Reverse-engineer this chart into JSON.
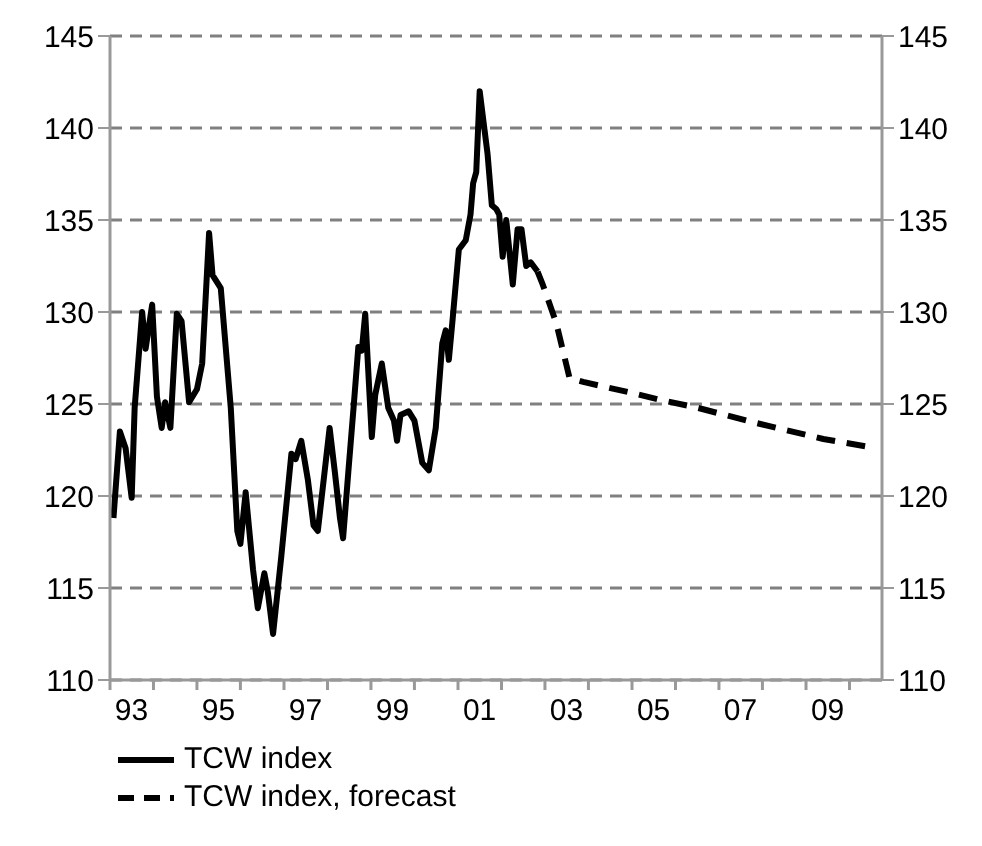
{
  "chart_data": {
    "type": "line",
    "xlim": [
      "1993-01-01",
      "2010-10-01"
    ],
    "ylim": [
      110,
      145
    ],
    "yticks": [
      110,
      115,
      120,
      125,
      130,
      135,
      140,
      145
    ],
    "y2lim": [
      110,
      145
    ],
    "y2ticks": [
      110,
      115,
      120,
      125,
      130,
      135,
      140,
      145
    ],
    "xticks": [
      {
        "value": "1993-01-01",
        "label": null
      },
      {
        "value": "1993-07-01",
        "label": "93"
      },
      {
        "value": "1994-01-01",
        "label": null
      },
      {
        "value": "1995-01-01",
        "label": null
      },
      {
        "value": "1995-07-01",
        "label": "95"
      },
      {
        "value": "1996-01-01",
        "label": null
      },
      {
        "value": "1997-01-01",
        "label": null
      },
      {
        "value": "1997-07-01",
        "label": "97"
      },
      {
        "value": "1998-01-01",
        "label": null
      },
      {
        "value": "1999-01-01",
        "label": null
      },
      {
        "value": "1999-07-01",
        "label": "99"
      },
      {
        "value": "2000-01-01",
        "label": null
      },
      {
        "value": "2001-01-01",
        "label": null
      },
      {
        "value": "2001-07-01",
        "label": "01"
      },
      {
        "value": "2002-01-01",
        "label": null
      },
      {
        "value": "2003-01-01",
        "label": null
      },
      {
        "value": "2003-07-01",
        "label": "03"
      },
      {
        "value": "2004-01-01",
        "label": null
      },
      {
        "value": "2005-01-01",
        "label": null
      },
      {
        "value": "2005-07-01",
        "label": "05"
      },
      {
        "value": "2006-01-01",
        "label": null
      },
      {
        "value": "2007-01-01",
        "label": null
      },
      {
        "value": "2007-07-01",
        "label": "07"
      },
      {
        "value": "2008-01-01",
        "label": null
      },
      {
        "value": "2009-01-01",
        "label": null
      },
      {
        "value": "2009-07-01",
        "label": "09"
      },
      {
        "value": "2010-01-01",
        "label": null
      }
    ],
    "grid": "y",
    "legend": "bottom",
    "marker": "none",
    "series": [
      {
        "name": "TCW index",
        "color": "#000000",
        "line_style": "solid",
        "x": [
          "1993-01-30",
          "1993-03-25",
          "1993-05-12",
          "1993-07-02",
          "1993-07-27",
          "1993-09-28",
          "1993-10-27",
          "1993-12-21",
          "1994-01-30",
          "1994-03-11",
          "1994-04-09",
          "1994-05-23",
          "1994-07-16",
          "1994-08-25",
          "1994-10-27",
          "1995-01-01",
          "1995-02-14",
          "1995-04-13",
          "1995-05-12",
          "1995-07-20",
          "1995-10-12",
          "1995-12-06",
          "1996-01-01",
          "1996-02-14",
          "1996-04-16",
          "1996-05-26",
          "1996-07-20",
          "1996-08-18",
          "1996-10-01",
          "1996-12-09",
          "1997-03-04",
          "1997-04-09",
          "1997-05-26",
          "1997-07-20",
          "1997-09-06",
          "1997-10-12",
          "1998-01-19",
          "1998-03-04",
          "1998-04-16",
          "1998-05-12",
          "1998-06-25",
          "1998-08-08",
          "1998-09-17",
          "1998-10-16",
          "1998-11-14",
          "1999-01-08",
          "1999-02-06",
          "1999-04-02",
          "1999-05-26",
          "1999-07-13",
          "1999-08-08",
          "1999-09-06",
          "1999-11-14",
          "2000-01-01",
          "2000-03-07",
          "2000-05-01",
          "2000-06-28",
          "2000-08-22",
          "2000-09-20",
          "2000-10-16",
          "2000-11-14",
          "2001-01-08",
          "2001-03-07",
          "2001-04-16",
          "2001-05-08",
          "2001-06-03",
          "2001-07-02",
          "2001-07-31",
          "2001-09-06",
          "2001-10-12",
          "2001-11-18",
          "2001-12-13",
          "2002-01-11",
          "2002-02-10",
          "2002-04-06",
          "2002-05-16",
          "2002-06-18",
          "2002-07-28",
          "2002-09-03",
          "2002-10-31"
        ],
        "values": [
          118.8,
          123.5,
          122.6,
          119.9,
          124.8,
          130,
          128,
          130.4,
          125.4,
          123.7,
          125.1,
          123.7,
          129.9,
          129.5,
          125.1,
          125.8,
          127.2,
          134.3,
          132,
          131.3,
          124.8,
          118.1,
          117.4,
          120.2,
          116,
          113.9,
          115.8,
          114.8,
          112.5,
          116.7,
          122.3,
          122,
          123,
          120.9,
          118.4,
          118.1,
          123.7,
          121.3,
          118.8,
          117.7,
          121.3,
          124.8,
          128.1,
          127.9,
          129.9,
          123.2,
          125.5,
          127.2,
          124.8,
          124.1,
          123,
          124.4,
          124.6,
          124.1,
          121.8,
          121.4,
          123.7,
          128.3,
          129,
          127.4,
          129.4,
          133.4,
          133.9,
          135.3,
          137,
          137.6,
          142,
          140.5,
          138.6,
          135.8,
          135.6,
          135.3,
          133,
          135,
          131.5,
          134.5,
          134.5,
          132.5,
          132.7,
          132.2
        ]
      },
      {
        "name": "TCW index, forecast",
        "color": "#000000",
        "line_style": "dashed",
        "x": [
          "2002-10-31",
          "2002-12-13",
          "2003-04-06",
          "2003-07-27",
          "2003-11-18",
          "2005-01-01",
          "2005-09-13",
          "2006-07-02",
          "2007-10-20",
          "2009-05-26",
          "2010-05-12"
        ],
        "values": [
          132.2,
          131.5,
          129.4,
          126.4,
          126.2,
          125.6,
          125.2,
          124.8,
          124,
          123.1,
          122.7
        ]
      }
    ]
  }
}
